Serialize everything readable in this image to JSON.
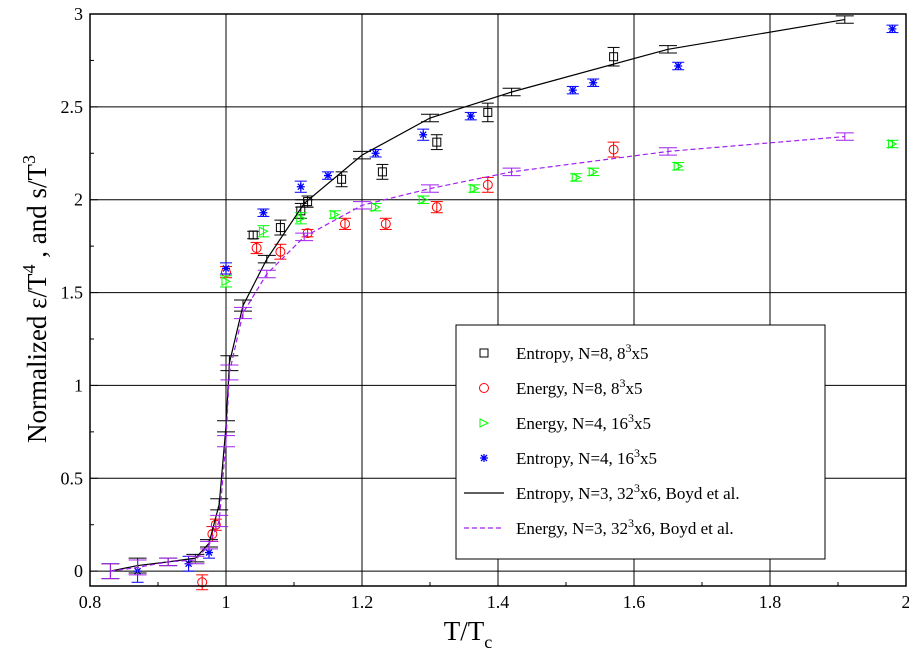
{
  "chart_data": {
    "type": "scatter",
    "title": "",
    "xlabel": {
      "main": "T/T",
      "sub": "c"
    },
    "ylabel": {
      "part1": "Normalized ε/T",
      "sup1": "4",
      "part2": " , and s/T",
      "sup2": "3"
    },
    "xlim": [
      0.8,
      2.0
    ],
    "ylim": [
      -0.08,
      3.0
    ],
    "x_ticks": [
      0.8,
      1.0,
      1.2,
      1.4,
      1.6,
      1.8,
      2.0
    ],
    "x_tick_labels": [
      "0.8",
      "1",
      "1.2",
      "1.4",
      "1.6",
      "1.8",
      "2"
    ],
    "y_ticks": [
      0,
      0.5,
      1.0,
      1.5,
      2.0,
      2.5,
      3.0
    ],
    "y_tick_labels": [
      "0",
      "0.5",
      "1",
      "1.5",
      "2",
      "2.5",
      "3"
    ],
    "grid": true,
    "legend_position": "bottom-right",
    "series": [
      {
        "name": "Entropy, N=8, 8³x5",
        "legend": {
          "pre": "Entropy, N=8, 8",
          "sup": "3",
          "post": "x5"
        },
        "marker": "square",
        "color": "#000000",
        "x": [
          1.04,
          1.08,
          1.11,
          1.12,
          1.17,
          1.23,
          1.31,
          1.385,
          1.57
        ],
        "y": [
          1.81,
          1.85,
          1.94,
          1.99,
          2.11,
          2.15,
          2.31,
          2.47,
          2.77
        ],
        "err": [
          0.02,
          0.04,
          0.04,
          0.03,
          0.04,
          0.04,
          0.04,
          0.05,
          0.05
        ]
      },
      {
        "name": "Energy, N=8, 8³x5",
        "legend": {
          "pre": "Energy, N=8, 8",
          "sup": "3",
          "post": "x5"
        },
        "marker": "circle",
        "color": "#ff0000",
        "x": [
          0.965,
          0.98,
          0.985,
          1.0,
          1.045,
          1.08,
          1.12,
          1.175,
          1.235,
          1.31,
          1.385,
          1.57
        ],
        "y": [
          -0.06,
          0.2,
          0.25,
          1.61,
          1.74,
          1.72,
          1.82,
          1.87,
          1.87,
          1.96,
          2.08,
          2.27
        ],
        "err": [
          0.04,
          0.04,
          0.03,
          0.03,
          0.03,
          0.04,
          0.02,
          0.03,
          0.03,
          0.03,
          0.04,
          0.04
        ]
      },
      {
        "name": "Energy, N=4, 16³x5",
        "legend": {
          "pre": "Energy, N=4, 16",
          "sup": "3",
          "post": "x5"
        },
        "marker": "triangle-right",
        "color": "#00ff00",
        "x": [
          1.0,
          1.055,
          1.11,
          1.16,
          1.22,
          1.29,
          1.365,
          1.515,
          1.54,
          1.665,
          1.98
        ],
        "y": [
          1.56,
          1.83,
          1.9,
          1.92,
          1.96,
          2.0,
          2.06,
          2.12,
          2.15,
          2.18,
          2.3
        ],
        "err": [
          0.03,
          0.03,
          0.03,
          0.02,
          0.02,
          0.02,
          0.02,
          0.02,
          0.02,
          0.02,
          0.02
        ]
      },
      {
        "name": "Entropy, N=4, 16³x5",
        "legend": {
          "pre": "Entropy, N=4, 16",
          "sup": "3",
          "post": "x5"
        },
        "marker": "asterisk",
        "color": "#0000ff",
        "x": [
          0.87,
          0.945,
          0.975,
          1.0,
          1.055,
          1.11,
          1.15,
          1.22,
          1.29,
          1.36,
          1.51,
          1.54,
          1.665,
          1.98
        ],
        "y": [
          0.0,
          0.04,
          0.1,
          1.63,
          1.93,
          2.07,
          2.13,
          2.25,
          2.35,
          2.45,
          2.59,
          2.63,
          2.72,
          2.92
        ],
        "err": [
          0.06,
          0.04,
          0.03,
          0.03,
          0.02,
          0.03,
          0.02,
          0.02,
          0.03,
          0.02,
          0.02,
          0.02,
          0.02,
          0.02
        ]
      },
      {
        "name": "Entropy, N=3, 32³x6, Boyd et al.",
        "legend": {
          "pre": "Entropy, N=3, 32",
          "sup": "3",
          "post": "x6, Boyd et al."
        },
        "marker": "line",
        "color": "#000000",
        "dash": false,
        "x": [
          0.83,
          0.87,
          0.915,
          0.955,
          0.975,
          0.99,
          1.0,
          1.005,
          1.025,
          1.06,
          1.115,
          1.2,
          1.3,
          1.42,
          1.65,
          1.91
        ],
        "y": [
          0.0,
          0.03,
          0.05,
          0.07,
          0.15,
          0.36,
          0.78,
          1.12,
          1.43,
          1.68,
          1.98,
          2.24,
          2.44,
          2.58,
          2.81,
          2.97
        ],
        "err": [
          0.04,
          0.04,
          0.02,
          0.02,
          0.02,
          0.03,
          0.03,
          0.04,
          0.03,
          0.02,
          0.02,
          0.02,
          0.02,
          0.02,
          0.02,
          0.02
        ]
      },
      {
        "name": "Energy, N=3, 32³x6, Boyd et al.",
        "legend": {
          "pre": "Energy, N=3, 32",
          "sup": "3",
          "post": "x6, Boyd et al."
        },
        "marker": "line",
        "color": "#a020f0",
        "dash": true,
        "x": [
          0.83,
          0.87,
          0.915,
          0.955,
          0.975,
          0.99,
          1.0,
          1.005,
          1.025,
          1.06,
          1.115,
          1.2,
          1.3,
          1.42,
          1.65,
          1.91
        ],
        "y": [
          0.0,
          0.02,
          0.05,
          0.06,
          0.14,
          0.27,
          0.7,
          1.07,
          1.39,
          1.6,
          1.8,
          1.97,
          2.06,
          2.15,
          2.26,
          2.34
        ],
        "err": [
          0.04,
          0.04,
          0.02,
          0.02,
          0.02,
          0.03,
          0.03,
          0.04,
          0.03,
          0.02,
          0.02,
          0.02,
          0.02,
          0.02,
          0.02,
          0.02
        ]
      }
    ]
  }
}
